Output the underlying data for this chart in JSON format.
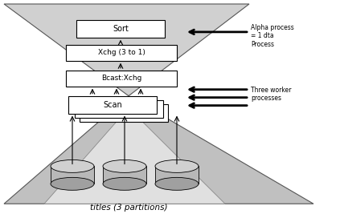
{
  "bg_color": "#ffffff",
  "box_fill": "#ffffff",
  "tri_fill_upper": "#d0d0d0",
  "tri_fill_lower": "#c0c0c0",
  "tri_fill_inner": "#e0e0e0",
  "title": "titles (3 partitions)",
  "label_sort": "Sort",
  "label_xchg": "Xchg (3 to 1)",
  "label_bcast_xchg": "Bcast:Xchg",
  "label_scan": "Scan",
  "annotation_alpha": "Alpha process\n= 1 dta\nProcess",
  "annotation_worker": "Three worker\nprocesses"
}
